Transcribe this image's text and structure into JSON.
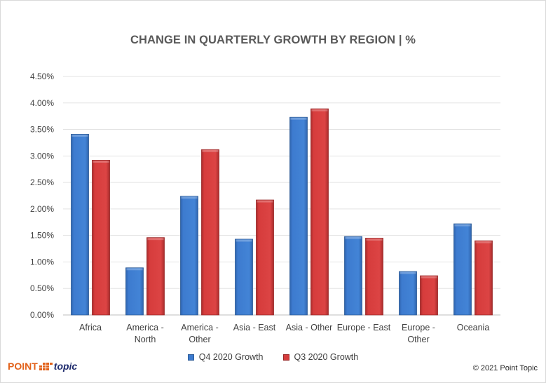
{
  "chart_data": {
    "type": "bar",
    "title": "CHANGE IN QUARTERLY GROWTH BY REGION | %",
    "xlabel": "",
    "ylabel": "",
    "ylim": [
      0,
      4.5
    ],
    "y_ticks": [
      "0.00%",
      "0.50%",
      "1.00%",
      "1.50%",
      "2.00%",
      "2.50%",
      "3.00%",
      "3.50%",
      "4.00%",
      "4.50%"
    ],
    "y_tick_values": [
      0,
      0.5,
      1.0,
      1.5,
      2.0,
      2.5,
      3.0,
      3.5,
      4.0,
      4.5
    ],
    "grid": true,
    "legend_position": "bottom",
    "categories": [
      [
        "Africa"
      ],
      [
        "America -",
        "North"
      ],
      [
        "America -",
        "Other"
      ],
      [
        "Asia - East"
      ],
      [
        "Asia - Other"
      ],
      [
        "Europe - East"
      ],
      [
        "Europe -",
        "Other"
      ],
      [
        "Oceania"
      ]
    ],
    "series": [
      {
        "name": "Q4 2020 Growth",
        "color": "#3d7bcf",
        "edge": "#2b5a96",
        "values": [
          3.41,
          0.89,
          2.24,
          1.43,
          3.73,
          1.48,
          0.82,
          1.72
        ]
      },
      {
        "name": "Q3 2020 Growth",
        "color": "#d63c3c",
        "edge": "#982626",
        "values": [
          2.92,
          1.46,
          3.12,
          2.17,
          3.89,
          1.45,
          0.74,
          1.4
        ]
      }
    ]
  },
  "branding": {
    "logo_point": "POINT",
    "logo_topic": "topic",
    "copyright": "© 2021 Point Topic"
  }
}
